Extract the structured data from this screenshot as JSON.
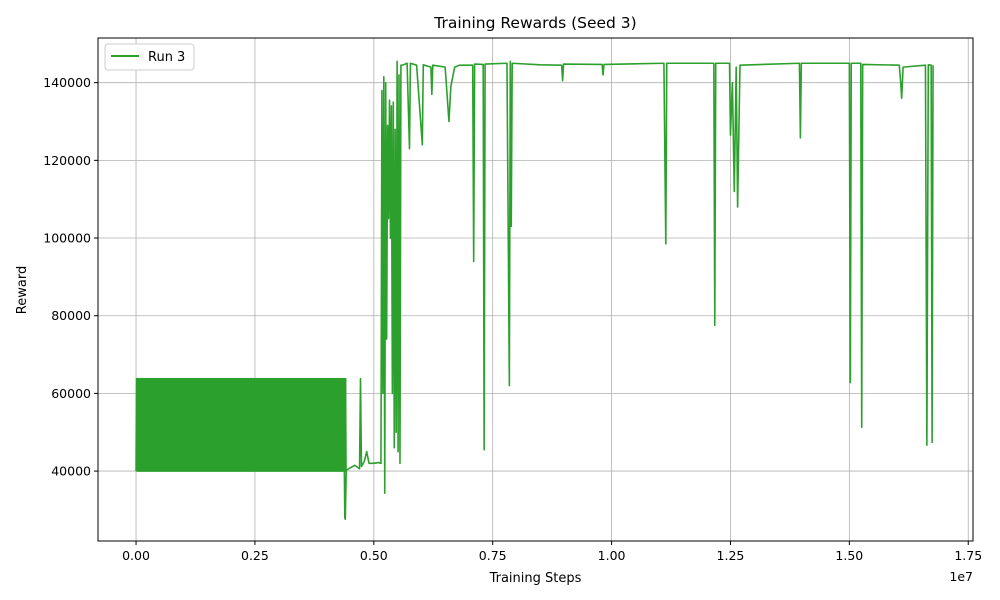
{
  "chart_data": {
    "type": "line",
    "title": "Training Rewards (Seed 3)",
    "xlabel": "Training Steps",
    "ylabel": "Reward",
    "x_multiplier_label": "1e7",
    "xlim": [
      -800000,
      17600000
    ],
    "ylim": [
      22000,
      151500
    ],
    "x_ticks": [
      0,
      2500000,
      5000000,
      7500000,
      10000000,
      12500000,
      15000000,
      17500000
    ],
    "x_tick_labels": [
      "0.00",
      "0.25",
      "0.50",
      "0.75",
      "1.00",
      "1.25",
      "1.50",
      "1.75"
    ],
    "y_ticks": [
      40000,
      60000,
      80000,
      100000,
      120000,
      140000
    ],
    "y_tick_labels": [
      "40000",
      "60000",
      "80000",
      "100000",
      "120000",
      "140000"
    ],
    "grid": true,
    "legend_position": "top-left",
    "series": [
      {
        "name": "Run 3",
        "color": "#2ca02c",
        "oscillation": {
          "x_start": 0,
          "x_end": 4420000,
          "y_low": 40000,
          "y_high": 63800
        },
        "points": [
          [
            4380000,
            40500
          ],
          [
            4390000,
            28000
          ],
          [
            4400000,
            27600
          ],
          [
            4420000,
            40200
          ],
          [
            4500000,
            40800
          ],
          [
            4600000,
            41500
          ],
          [
            4700000,
            40600
          ],
          [
            4720000,
            63800
          ],
          [
            4740000,
            41200
          ],
          [
            4800000,
            42500
          ],
          [
            4850000,
            45000
          ],
          [
            4900000,
            42000
          ],
          [
            5000000,
            42000
          ],
          [
            5100000,
            42200
          ],
          [
            5150000,
            42000
          ],
          [
            5170000,
            138000
          ],
          [
            5190000,
            60000
          ],
          [
            5210000,
            141500
          ],
          [
            5230000,
            34300
          ],
          [
            5250000,
            140000
          ],
          [
            5270000,
            74000
          ],
          [
            5290000,
            129000
          ],
          [
            5310000,
            105000
          ],
          [
            5330000,
            135500
          ],
          [
            5350000,
            100000
          ],
          [
            5370000,
            134000
          ],
          [
            5390000,
            60000
          ],
          [
            5410000,
            135000
          ],
          [
            5430000,
            46000
          ],
          [
            5450000,
            128000
          ],
          [
            5470000,
            50000
          ],
          [
            5490000,
            145500
          ],
          [
            5510000,
            45000
          ],
          [
            5530000,
            142000
          ],
          [
            5550000,
            42000
          ],
          [
            5570000,
            144500
          ],
          [
            5600000,
            144500
          ],
          [
            5700000,
            145000
          ],
          [
            5750000,
            123000
          ],
          [
            5770000,
            145000
          ],
          [
            5900000,
            144500
          ],
          [
            6020000,
            124000
          ],
          [
            6040000,
            144600
          ],
          [
            6200000,
            144000
          ],
          [
            6220000,
            137000
          ],
          [
            6240000,
            144500
          ],
          [
            6500000,
            144000
          ],
          [
            6580000,
            130000
          ],
          [
            6620000,
            139000
          ],
          [
            6700000,
            144000
          ],
          [
            6800000,
            144500
          ],
          [
            7080000,
            144500
          ],
          [
            7100000,
            94000
          ],
          [
            7120000,
            144800
          ],
          [
            7300000,
            144700
          ],
          [
            7320000,
            45500
          ],
          [
            7340000,
            144800
          ],
          [
            7800000,
            145000
          ],
          [
            7850000,
            62000
          ],
          [
            7870000,
            145500
          ],
          [
            7890000,
            103000
          ],
          [
            7910000,
            145000
          ],
          [
            8500000,
            144600
          ],
          [
            8950000,
            144500
          ],
          [
            8970000,
            140500
          ],
          [
            8990000,
            144800
          ],
          [
            9800000,
            144700
          ],
          [
            9820000,
            142000
          ],
          [
            9840000,
            144700
          ],
          [
            11100000,
            145000
          ],
          [
            11140000,
            98500
          ],
          [
            11160000,
            145000
          ],
          [
            12150000,
            145000
          ],
          [
            12170000,
            77500
          ],
          [
            12190000,
            145000
          ],
          [
            12480000,
            145000
          ],
          [
            12500000,
            126500
          ],
          [
            12540000,
            140000
          ],
          [
            12580000,
            112000
          ],
          [
            12620000,
            144000
          ],
          [
            12650000,
            108000
          ],
          [
            12700000,
            144500
          ],
          [
            13950000,
            145000
          ],
          [
            13970000,
            125800
          ],
          [
            13990000,
            145000
          ],
          [
            15000000,
            145000
          ],
          [
            15020000,
            62800
          ],
          [
            15040000,
            145000
          ],
          [
            15240000,
            145000
          ],
          [
            15260000,
            51300
          ],
          [
            15280000,
            144700
          ],
          [
            16050000,
            144500
          ],
          [
            16080000,
            140000
          ],
          [
            16100000,
            136000
          ],
          [
            16130000,
            144000
          ],
          [
            16600000,
            144500
          ],
          [
            16630000,
            46700
          ],
          [
            16660000,
            144600
          ],
          [
            16720000,
            144500
          ],
          [
            16740000,
            47400
          ],
          [
            16760000,
            144500
          ]
        ]
      }
    ]
  }
}
